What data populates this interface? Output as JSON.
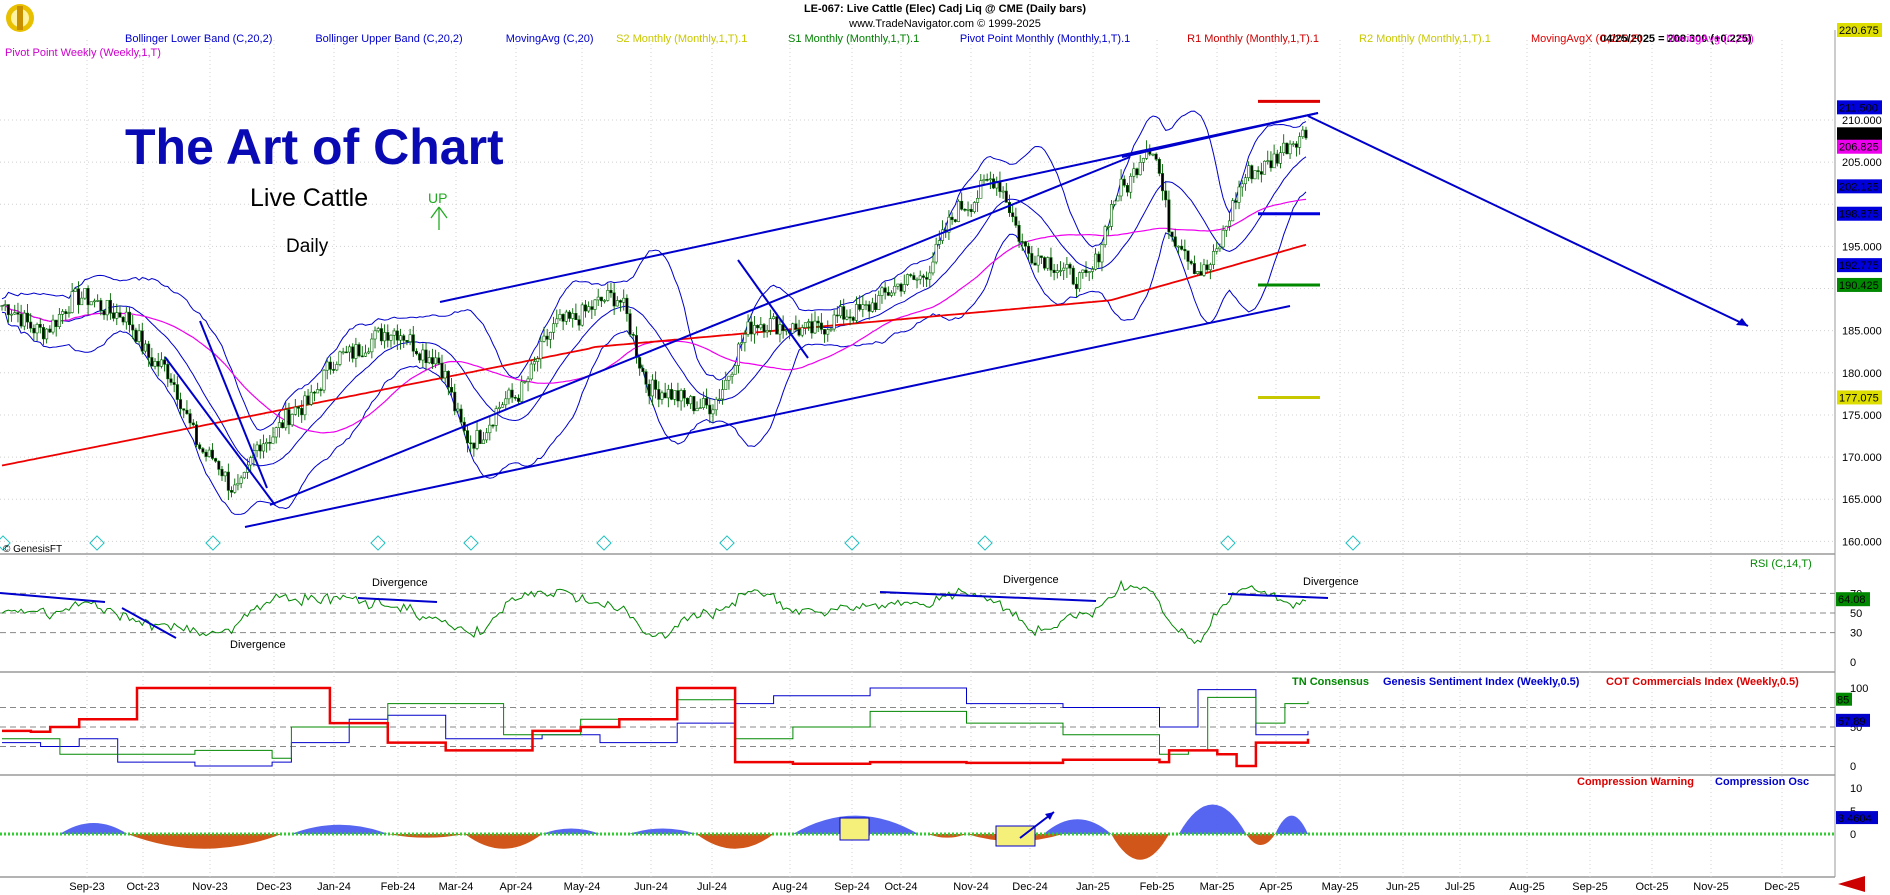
{
  "header": {
    "title": "LE-067:  Live Cattle (Elec) Cadj Liq @ CME  (Daily bars)",
    "copyright": "www.TradeNavigator.com © 1999-2025",
    "quote": "04/25/2025 = 208.300 (+0.225)"
  },
  "legend": [
    {
      "text": "Bollinger Lower Band (C,20,2)",
      "color": "#0000cc"
    },
    {
      "text": "Bollinger Upper Band (C,20,2)",
      "color": "#0000cc"
    },
    {
      "text": "MovingAvg (C,20)",
      "color": "#0000cc"
    },
    {
      "text": "S2 Monthly (Monthly,1,T).1",
      "color": "#c8c800"
    },
    {
      "text": "S1 Monthly (Monthly,1,T).1",
      "color": "#008000"
    },
    {
      "text": "Pivot Point Monthly (Monthly,1,T).1",
      "color": "#0000cc"
    },
    {
      "text": "R1 Monthly (Monthly,1,T).1",
      "color": "#cc0000"
    },
    {
      "text": "R2 Monthly (Monthly,1,T).1",
      "color": "#c8c800"
    },
    {
      "text": "MovingAvgX (C,200,F)",
      "color": "#dd0000"
    },
    {
      "text": "MovingAvg (C,50)",
      "color": "#ee00ee"
    }
  ],
  "legend2": {
    "text": "Pivot Point Weekly (Weekly,1,T)",
    "color": "#cc00cc"
  },
  "annotations": {
    "headline": "The Art of Chart",
    "subtitle": "Live Cattle",
    "timeframe": "Daily",
    "up_label": "UP",
    "watermark": "© GenesisFT"
  },
  "colors": {
    "candle": "#006600",
    "bb": "#0000cc",
    "ma50": "#ee00ee",
    "ma200": "#ee0000",
    "trend": "#0000cc"
  },
  "chart_data": [
    {
      "type": "candlestick",
      "name": "price",
      "x_labels": [
        "Sep-23",
        "Oct-23",
        "Nov-23",
        "Dec-23",
        "Jan-24",
        "Feb-24",
        "Mar-24",
        "Apr-24",
        "May-24",
        "Jun-24",
        "Jul-24",
        "Aug-24",
        "Sep-24",
        "Oct-24",
        "Nov-24",
        "Dec-24",
        "Jan-25",
        "Feb-25",
        "Mar-25",
        "Apr-25",
        "May-25",
        "Jun-25",
        "Jul-25",
        "Aug-25",
        "Sep-25",
        "Oct-25",
        "Nov-25",
        "Dec-25"
      ],
      "y_ticks": [
        160,
        165,
        170,
        175,
        180,
        185,
        190,
        195,
        200,
        205,
        210
      ],
      "ylim": [
        158.5,
        220.675
      ],
      "close_path_key": [
        [
          0,
          188
        ],
        [
          0.03,
          185
        ],
        [
          0.06,
          189
        ],
        [
          0.09,
          187
        ],
        [
          0.12,
          181
        ],
        [
          0.16,
          170
        ],
        [
          0.18,
          166
        ],
        [
          0.2,
          172
        ],
        [
          0.23,
          176
        ],
        [
          0.26,
          182
        ],
        [
          0.3,
          185
        ],
        [
          0.33,
          182
        ],
        [
          0.36,
          172
        ],
        [
          0.39,
          177
        ],
        [
          0.43,
          186
        ],
        [
          0.47,
          189
        ],
        [
          0.5,
          178
        ],
        [
          0.54,
          176
        ],
        [
          0.58,
          186
        ],
        [
          0.62,
          185
        ],
        [
          0.65,
          187
        ],
        [
          0.7,
          191
        ],
        [
          0.74,
          200
        ],
        [
          0.76,
          203
        ],
        [
          0.79,
          194
        ],
        [
          0.83,
          191
        ],
        [
          0.86,
          202
        ],
        [
          0.88,
          207
        ],
        [
          0.9,
          196
        ],
        [
          0.92,
          192
        ],
        [
          0.96,
          204
        ],
        [
          1,
          208.3
        ]
      ],
      "price_labels": [
        {
          "text": "220.675",
          "value": 220.675,
          "bg": "#dddd00",
          "fg": "#ffffff"
        },
        {
          "text": "211.500",
          "value": 211.5,
          "bg": "#0000dd",
          "fg": "#ffffff"
        },
        {
          "text": "208.300",
          "value": 208.3,
          "bg": "#000000",
          "fg": "#ffffff"
        },
        {
          "text": "206.825",
          "value": 206.825,
          "bg": "#ee00ee",
          "fg": "#ffffff"
        },
        {
          "text": "202.125",
          "value": 202.125,
          "bg": "#0000dd",
          "fg": "#ffffff"
        },
        {
          "text": "198.875",
          "value": 198.875,
          "bg": "#0000dd",
          "fg": "#ffffff"
        },
        {
          "text": "192.775",
          "value": 192.775,
          "bg": "#0000dd",
          "fg": "#ffffff"
        },
        {
          "text": "190.425",
          "value": 190.425,
          "bg": "#008800",
          "fg": "#ffffff"
        },
        {
          "text": "177.075",
          "value": 177.075,
          "bg": "#dddd00",
          "fg": "#000000"
        }
      ],
      "levels": [
        {
          "name": "R2",
          "value": 212.2,
          "color": "#dd0000"
        },
        {
          "name": "Pivot",
          "value": 198.875,
          "color": "#0000dd"
        },
        {
          "name": "S1",
          "value": 190.425,
          "color": "#008800"
        },
        {
          "name": "S2",
          "value": 177.075,
          "color": "#c8c800"
        }
      ]
    },
    {
      "type": "line",
      "name": "RSI",
      "label": "RSI (C,14,T)",
      "y_ticks": [
        0,
        30,
        50,
        70
      ],
      "last_value": "64.08",
      "annotations": [
        "Divergence",
        "Divergence",
        "Divergence",
        "Divergence"
      ]
    },
    {
      "type": "line",
      "name": "sentiment",
      "series": [
        {
          "name": "TN Consensus",
          "color": "#008800"
        },
        {
          "name": "Genesis Sentiment Index (Weekly,0.5)",
          "color": "#0000cc"
        },
        {
          "name": "COT Commercials Index (Weekly,0.5)",
          "color": "#dd0000"
        }
      ],
      "y_ticks": [
        0,
        50,
        100
      ],
      "last_values": [
        "85",
        "57.89"
      ]
    },
    {
      "type": "area",
      "name": "compression",
      "series": [
        {
          "name": "Compression Warning",
          "color": "#dd0000"
        },
        {
          "name": "Compression Osc",
          "color": "#0000cc"
        }
      ],
      "y_ticks": [
        0,
        5,
        10
      ],
      "last_value": "3.4604"
    }
  ]
}
